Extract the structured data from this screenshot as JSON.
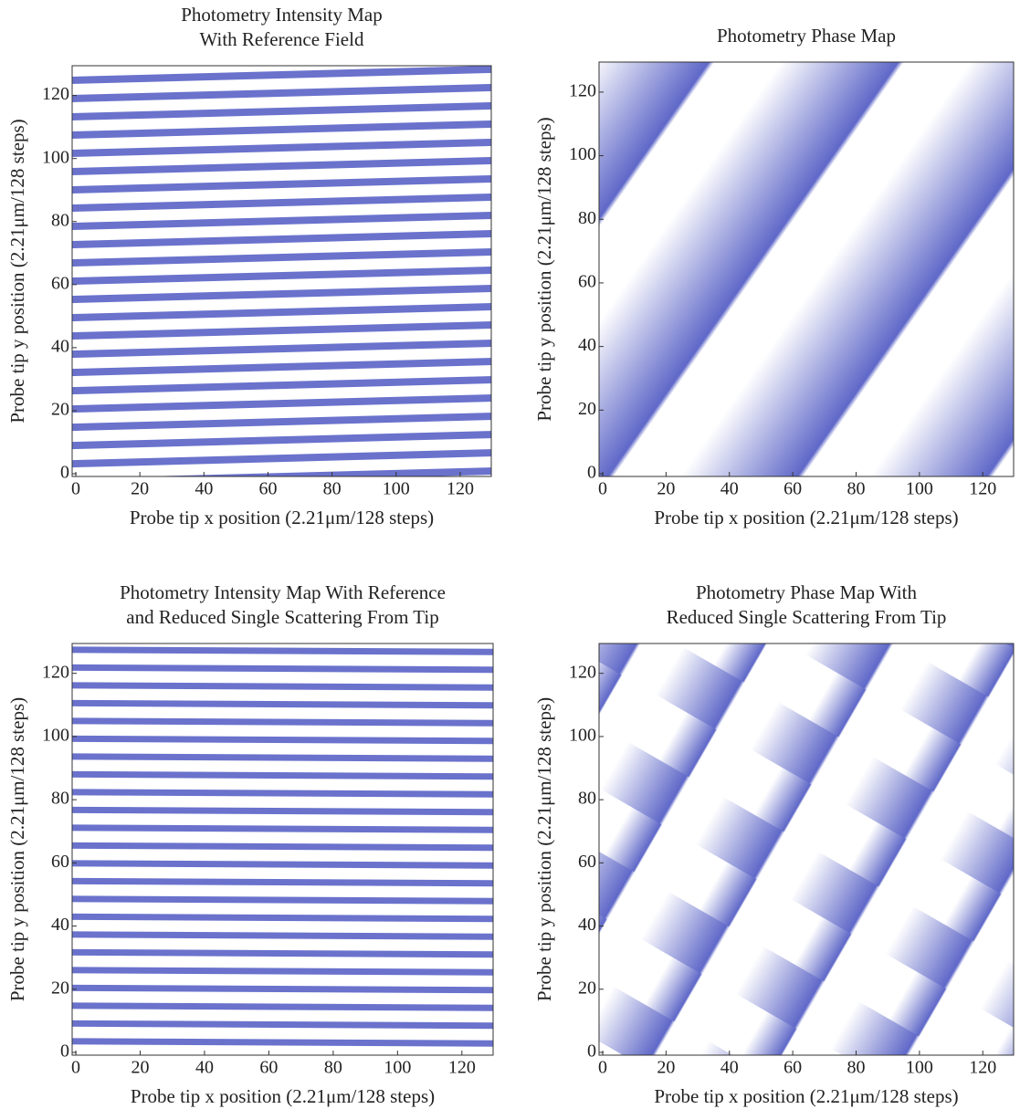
{
  "chart_data": [
    {
      "type": "image",
      "title": [
        "Photometry Intensity Map",
        "With Reference Field"
      ],
      "xlabel": "Probe tip x position (2.21μm/128 steps)",
      "ylabel": "Probe tip y position (2.21μm/128 steps)",
      "xlim": [
        0,
        128
      ],
      "ylim": [
        0,
        128
      ],
      "xticks": [
        0,
        20,
        40,
        60,
        80,
        100,
        120
      ],
      "yticks": [
        0,
        20,
        40,
        60,
        80,
        100,
        120
      ]
    },
    {
      "type": "image",
      "title": [
        "Photometry Phase Map"
      ],
      "xlabel": "Probe tip x position (2.21μm/128 steps)",
      "ylabel": "Probe tip y position (2.21μm/128 steps)",
      "xlim": [
        0,
        128
      ],
      "ylim": [
        0,
        128
      ],
      "xticks": [
        0,
        20,
        40,
        60,
        80,
        100,
        120
      ],
      "yticks": [
        0,
        20,
        40,
        60,
        80,
        100,
        120
      ]
    },
    {
      "type": "image",
      "title": [
        "Photometry Intensity Map With Reference",
        "and Reduced Single Scattering From Tip"
      ],
      "xlabel": "Probe tip x position (2.21μm/128 steps)",
      "ylabel": "Probe tip y position (2.21μm/128 steps)",
      "xlim": [
        0,
        128
      ],
      "ylim": [
        0,
        128
      ],
      "xticks": [
        0,
        20,
        40,
        60,
        80,
        100,
        120
      ],
      "yticks": [
        0,
        20,
        40,
        60,
        80,
        100,
        120
      ]
    },
    {
      "type": "image",
      "title": [
        "Photometry Phase Map With",
        "Reduced Single Scattering From Tip"
      ],
      "xlabel": "Probe tip x position (2.21μm/128 steps)",
      "ylabel": "Probe tip y position (2.21μm/128 steps)",
      "xlim": [
        0,
        128
      ],
      "ylim": [
        0,
        128
      ],
      "xticks": [
        0,
        20,
        40,
        60,
        80,
        100,
        120
      ],
      "yticks": [
        0,
        20,
        40,
        60,
        80,
        100,
        120
      ]
    }
  ]
}
